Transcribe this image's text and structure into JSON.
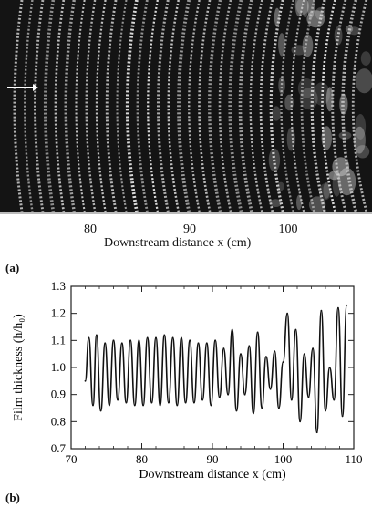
{
  "panel_a": {
    "label": "(a)",
    "x_ticks": [
      "80",
      "90",
      "100"
    ],
    "xlabel": "Downstream distance  x (cm)"
  },
  "panel_b": {
    "label": "(b)"
  },
  "chart_data": {
    "type": "line",
    "xlabel": "Downstream distance  x (cm)",
    "ylabel": "Film thickness (h/h₀)",
    "xlim": [
      70,
      110
    ],
    "ylim": [
      0.7,
      1.3
    ],
    "x_ticks": [
      70,
      80,
      90,
      100,
      110
    ],
    "y_ticks": [
      0.7,
      0.8,
      0.9,
      1.0,
      1.1,
      1.2,
      1.3
    ],
    "x_tick_labels": [
      "70",
      "80",
      "90",
      "100",
      "110"
    ],
    "y_tick_labels": [
      "0.7",
      "0.8",
      "0.9",
      "1.0",
      "1.1",
      "1.2",
      "1.3"
    ],
    "grid": false,
    "series": [
      {
        "x": [
          72.0,
          72.5,
          73.1,
          73.6,
          74.2,
          74.8,
          75.4,
          76.0,
          76.6,
          77.2,
          77.8,
          78.4,
          79.0,
          79.6,
          80.2,
          80.8,
          81.4,
          82.0,
          82.6,
          83.2,
          83.8,
          84.4,
          85.0,
          85.6,
          86.2,
          86.8,
          87.4,
          88.0,
          88.6,
          89.2,
          89.8,
          90.4,
          91.0,
          91.6,
          92.2,
          92.8,
          93.4,
          94.0,
          94.6,
          95.2,
          95.8,
          96.4,
          97.0,
          97.6,
          98.2,
          98.8,
          99.4,
          100.0,
          100.6,
          101.2,
          101.8,
          102.4,
          103.0,
          103.6,
          104.2,
          104.8,
          105.4,
          106.0,
          106.6,
          107.2,
          107.8,
          108.4,
          109.0
        ],
        "y": [
          0.95,
          1.11,
          0.86,
          1.12,
          0.84,
          1.09,
          0.86,
          1.1,
          0.88,
          1.09,
          0.87,
          1.1,
          0.86,
          1.1,
          0.86,
          1.11,
          0.87,
          1.11,
          0.86,
          1.12,
          0.87,
          1.11,
          0.86,
          1.11,
          0.87,
          1.1,
          0.87,
          1.09,
          0.88,
          1.09,
          0.86,
          1.1,
          0.89,
          1.07,
          0.9,
          1.14,
          0.84,
          1.05,
          0.9,
          1.08,
          0.83,
          1.13,
          0.85,
          1.04,
          0.92,
          1.06,
          0.85,
          1.02,
          1.2,
          0.88,
          1.14,
          0.8,
          1.05,
          0.89,
          1.07,
          0.76,
          1.21,
          0.84,
          1.0,
          0.88,
          1.22,
          0.82,
          1.23
        ]
      }
    ]
  }
}
